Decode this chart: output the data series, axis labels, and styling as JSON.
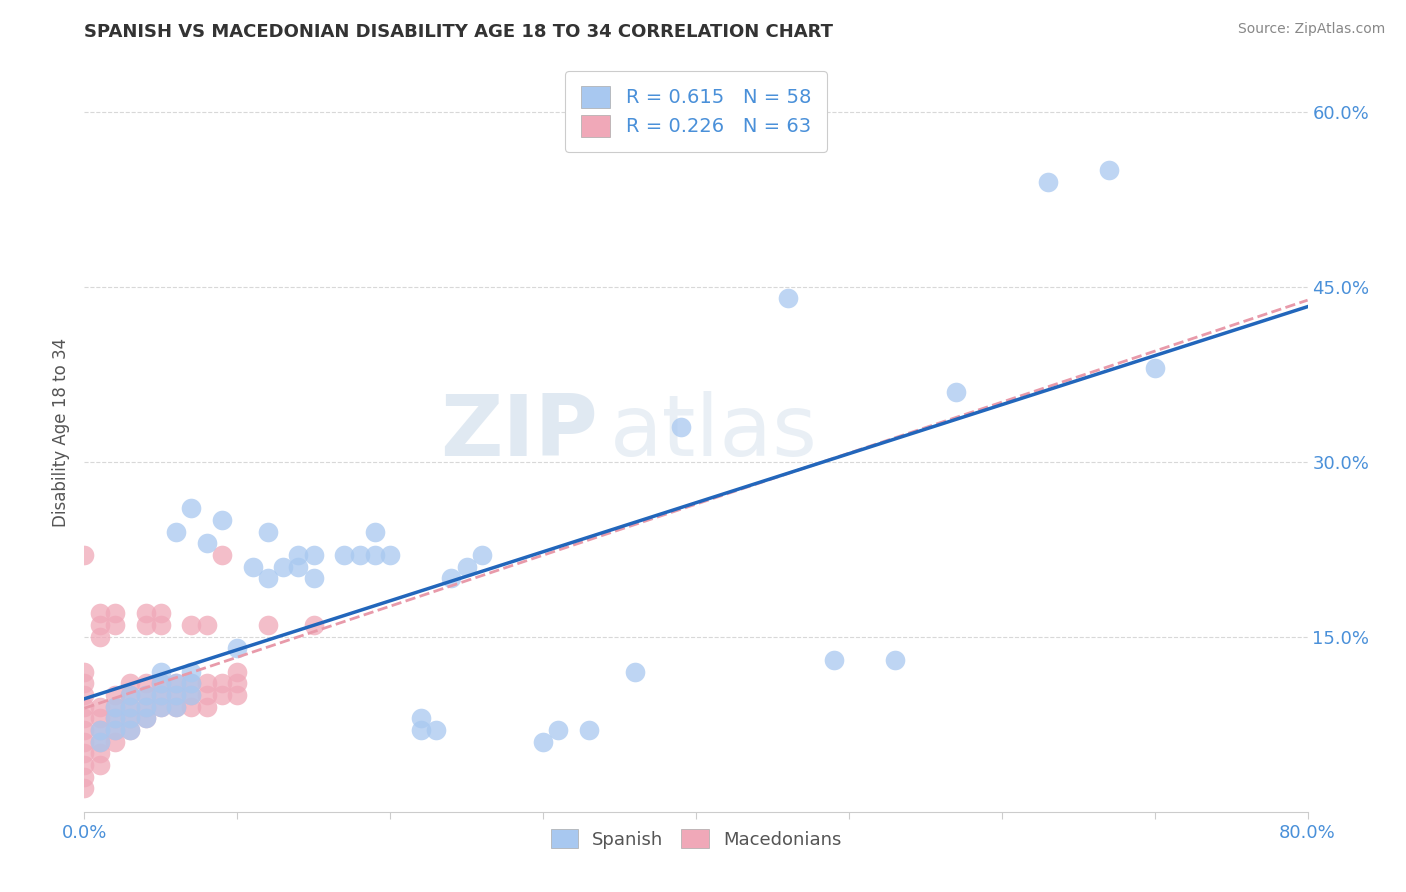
{
  "title": "SPANISH VS MACEDONIAN DISABILITY AGE 18 TO 34 CORRELATION CHART",
  "source_text": "Source: ZipAtlas.com",
  "xlabel": "",
  "ylabel": "Disability Age 18 to 34",
  "xlim": [
    0.0,
    0.8
  ],
  "ylim": [
    0.0,
    0.65
  ],
  "ytick_positions": [
    0.15,
    0.3,
    0.45,
    0.6
  ],
  "ytick_labels": [
    "15.0%",
    "30.0%",
    "45.0%",
    "60.0%"
  ],
  "background_color": "#ffffff",
  "grid_color": "#d8d8d8",
  "legend_R1": "0.615",
  "legend_N1": "58",
  "legend_R2": "0.226",
  "legend_N2": "63",
  "spanish_color": "#a8c8f0",
  "macedonian_color": "#f0a8b8",
  "spanish_line_color": "#2266bb",
  "macedonian_line_color": "#e89aaa",
  "watermark_zip": "ZIP",
  "watermark_atlas": "atlas",
  "spanish_points": [
    [
      0.01,
      0.06
    ],
    [
      0.01,
      0.07
    ],
    [
      0.02,
      0.07
    ],
    [
      0.02,
      0.08
    ],
    [
      0.02,
      0.09
    ],
    [
      0.03,
      0.07
    ],
    [
      0.03,
      0.08
    ],
    [
      0.03,
      0.09
    ],
    [
      0.03,
      0.1
    ],
    [
      0.04,
      0.08
    ],
    [
      0.04,
      0.09
    ],
    [
      0.04,
      0.1
    ],
    [
      0.05,
      0.09
    ],
    [
      0.05,
      0.1
    ],
    [
      0.05,
      0.11
    ],
    [
      0.05,
      0.12
    ],
    [
      0.06,
      0.09
    ],
    [
      0.06,
      0.1
    ],
    [
      0.06,
      0.11
    ],
    [
      0.06,
      0.24
    ],
    [
      0.07,
      0.1
    ],
    [
      0.07,
      0.11
    ],
    [
      0.07,
      0.12
    ],
    [
      0.07,
      0.26
    ],
    [
      0.08,
      0.23
    ],
    [
      0.09,
      0.25
    ],
    [
      0.1,
      0.14
    ],
    [
      0.11,
      0.21
    ],
    [
      0.12,
      0.2
    ],
    [
      0.12,
      0.24
    ],
    [
      0.13,
      0.21
    ],
    [
      0.14,
      0.21
    ],
    [
      0.14,
      0.22
    ],
    [
      0.15,
      0.2
    ],
    [
      0.15,
      0.22
    ],
    [
      0.17,
      0.22
    ],
    [
      0.18,
      0.22
    ],
    [
      0.19,
      0.22
    ],
    [
      0.19,
      0.24
    ],
    [
      0.2,
      0.22
    ],
    [
      0.22,
      0.07
    ],
    [
      0.22,
      0.08
    ],
    [
      0.23,
      0.07
    ],
    [
      0.24,
      0.2
    ],
    [
      0.25,
      0.21
    ],
    [
      0.26,
      0.22
    ],
    [
      0.3,
      0.06
    ],
    [
      0.31,
      0.07
    ],
    [
      0.33,
      0.07
    ],
    [
      0.36,
      0.12
    ],
    [
      0.39,
      0.33
    ],
    [
      0.46,
      0.44
    ],
    [
      0.49,
      0.13
    ],
    [
      0.53,
      0.13
    ],
    [
      0.57,
      0.36
    ],
    [
      0.63,
      0.54
    ],
    [
      0.67,
      0.55
    ],
    [
      0.7,
      0.38
    ]
  ],
  "macedonian_points": [
    [
      0.0,
      0.02
    ],
    [
      0.0,
      0.03
    ],
    [
      0.0,
      0.04
    ],
    [
      0.0,
      0.05
    ],
    [
      0.0,
      0.06
    ],
    [
      0.0,
      0.07
    ],
    [
      0.0,
      0.08
    ],
    [
      0.0,
      0.09
    ],
    [
      0.0,
      0.1
    ],
    [
      0.0,
      0.11
    ],
    [
      0.0,
      0.12
    ],
    [
      0.0,
      0.22
    ],
    [
      0.01,
      0.04
    ],
    [
      0.01,
      0.05
    ],
    [
      0.01,
      0.06
    ],
    [
      0.01,
      0.07
    ],
    [
      0.01,
      0.08
    ],
    [
      0.01,
      0.09
    ],
    [
      0.01,
      0.15
    ],
    [
      0.01,
      0.16
    ],
    [
      0.01,
      0.17
    ],
    [
      0.02,
      0.06
    ],
    [
      0.02,
      0.07
    ],
    [
      0.02,
      0.08
    ],
    [
      0.02,
      0.09
    ],
    [
      0.02,
      0.1
    ],
    [
      0.02,
      0.16
    ],
    [
      0.02,
      0.17
    ],
    [
      0.03,
      0.07
    ],
    [
      0.03,
      0.08
    ],
    [
      0.03,
      0.09
    ],
    [
      0.03,
      0.1
    ],
    [
      0.03,
      0.11
    ],
    [
      0.04,
      0.08
    ],
    [
      0.04,
      0.09
    ],
    [
      0.04,
      0.1
    ],
    [
      0.04,
      0.11
    ],
    [
      0.04,
      0.16
    ],
    [
      0.04,
      0.17
    ],
    [
      0.05,
      0.09
    ],
    [
      0.05,
      0.1
    ],
    [
      0.05,
      0.11
    ],
    [
      0.05,
      0.16
    ],
    [
      0.05,
      0.17
    ],
    [
      0.06,
      0.09
    ],
    [
      0.06,
      0.1
    ],
    [
      0.06,
      0.11
    ],
    [
      0.07,
      0.09
    ],
    [
      0.07,
      0.1
    ],
    [
      0.07,
      0.11
    ],
    [
      0.07,
      0.16
    ],
    [
      0.08,
      0.09
    ],
    [
      0.08,
      0.1
    ],
    [
      0.08,
      0.11
    ],
    [
      0.08,
      0.16
    ],
    [
      0.09,
      0.1
    ],
    [
      0.09,
      0.11
    ],
    [
      0.1,
      0.1
    ],
    [
      0.1,
      0.11
    ],
    [
      0.1,
      0.12
    ],
    [
      0.09,
      0.22
    ],
    [
      0.12,
      0.16
    ],
    [
      0.15,
      0.16
    ]
  ]
}
